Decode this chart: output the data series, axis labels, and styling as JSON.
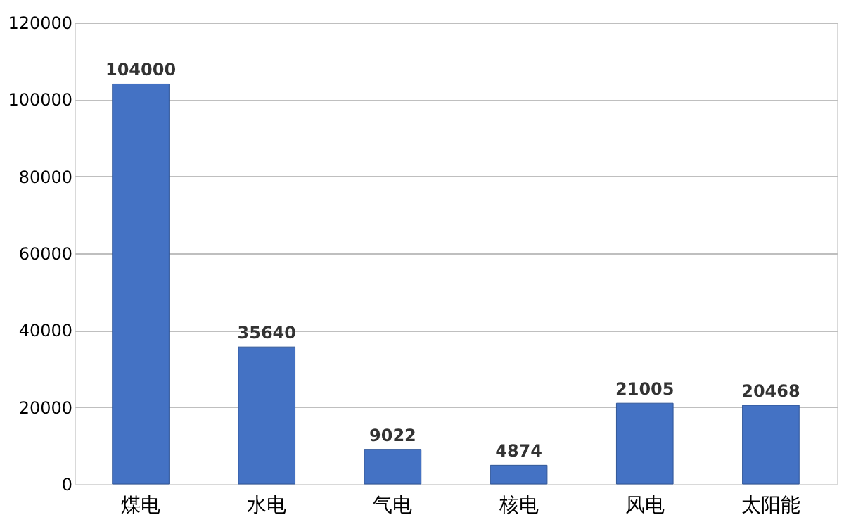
{
  "chart_data": {
    "type": "bar",
    "categories": [
      "煤电",
      "水电",
      "气电",
      "核电",
      "风电",
      "太阳能"
    ],
    "values": [
      104000,
      35640,
      9022,
      4874,
      21005,
      20468
    ],
    "color": "#4472c4",
    "ylim": [
      0,
      120000
    ],
    "yticks": [
      0,
      20000,
      40000,
      60000,
      80000,
      100000,
      120000
    ],
    "grid": "y",
    "data_labels": true
  }
}
